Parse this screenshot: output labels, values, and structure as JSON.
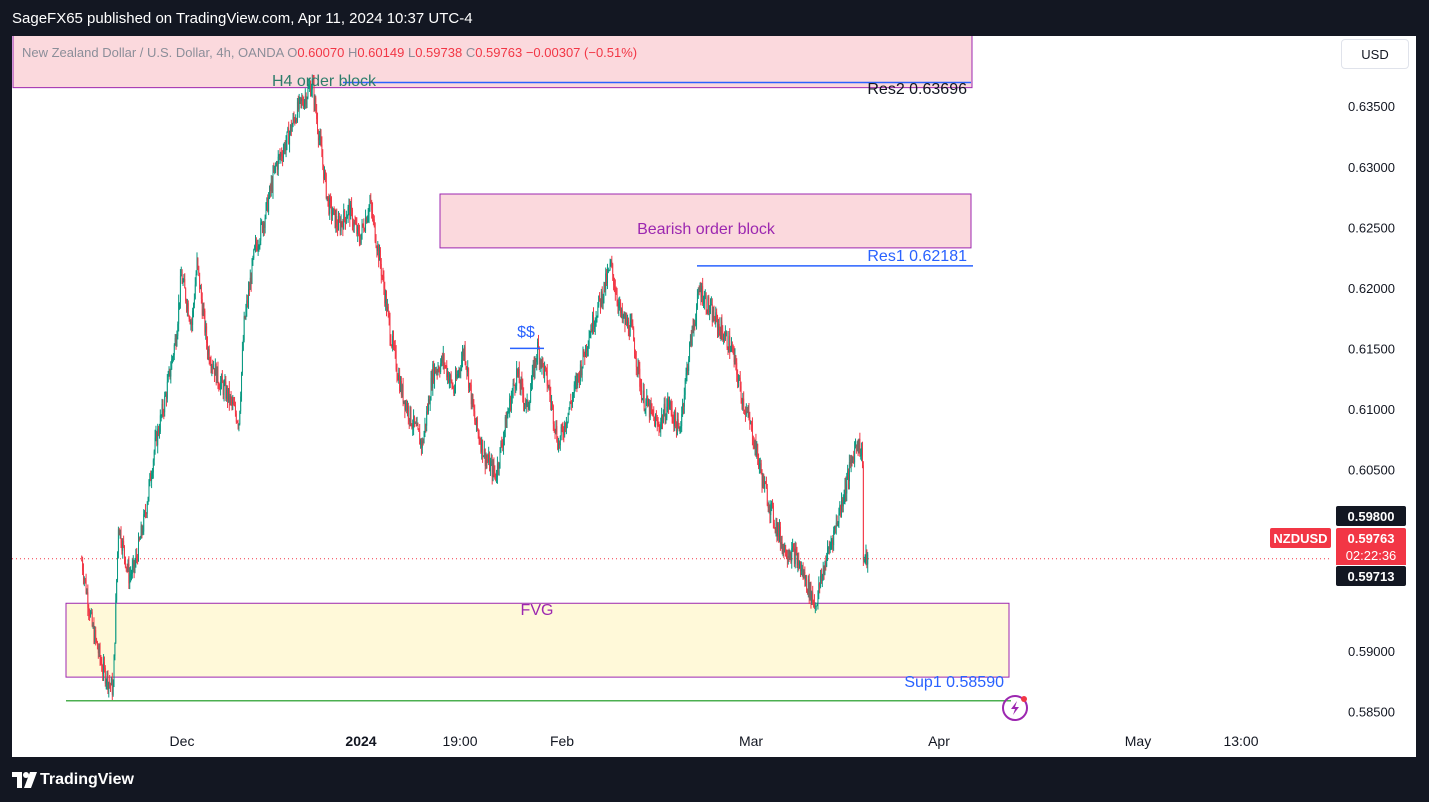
{
  "header": {
    "published": "SageFX65 published on TradingView.com, Apr 11, 2024 10:37 UTC-4"
  },
  "legend": {
    "symbol": "New Zealand Dollar / U.S. Dollar, 4h, OANDA",
    "open_label": "O",
    "open": "0.60070",
    "high_label": "H",
    "high": "0.60149",
    "low_label": "L",
    "low": "0.59738",
    "close_label": "C",
    "close": "0.59763",
    "change": "−0.00307 (−0.51%)"
  },
  "currency_button": "USD",
  "footer": {
    "brand": "TradingView"
  },
  "colors": {
    "up": "#089981",
    "down": "#f23645",
    "background": "#ffffff",
    "order_block_fill": "#fbd9dd",
    "fvg_fill": "#fff9d9",
    "zone_border": "#9c27b0",
    "resistance_line": "#2962ff",
    "support_line": "#4caf50"
  },
  "chart_data": {
    "type": "candlestick",
    "symbol": "NZDUSD",
    "timeframe": "4h",
    "y_axis": {
      "ticks": [
        "0.63500",
        "0.63000",
        "0.62500",
        "0.62000",
        "0.61500",
        "0.61000",
        "0.60500",
        "0.59000",
        "0.58500"
      ],
      "range": [
        0.5834,
        0.6408
      ]
    },
    "x_axis": {
      "ticks": [
        "Dec",
        "2024",
        "19:00",
        "Feb",
        "Mar",
        "Apr",
        "May",
        "13:00"
      ]
    },
    "price_path": [
      [
        "Nov 13",
        0.5975
      ],
      [
        "Nov 15",
        0.592
      ],
      [
        "Nov 17",
        0.5885
      ],
      [
        "Nov 19",
        0.5868
      ],
      [
        "Nov 20",
        0.6005
      ],
      [
        "Nov 22",
        0.5962
      ],
      [
        "Nov 23",
        0.5968
      ],
      [
        "Nov 25",
        0.601
      ],
      [
        "Nov 27",
        0.607
      ],
      [
        "Nov 29",
        0.611
      ],
      [
        "Dec 1",
        0.616
      ],
      [
        "Dec 2",
        0.621
      ],
      [
        "Dec 4",
        0.617
      ],
      [
        "Dec 5",
        0.622
      ],
      [
        "Dec 7",
        0.615
      ],
      [
        "Dec 9",
        0.6125
      ],
      [
        "Dec 11",
        0.611
      ],
      [
        "Dec 13",
        0.609
      ],
      [
        "Dec 14",
        0.617
      ],
      [
        "Dec 16",
        0.623
      ],
      [
        "Dec 18",
        0.626
      ],
      [
        "Dec 20",
        0.63
      ],
      [
        "Dec 22",
        0.632
      ],
      [
        "Dec 24",
        0.6345
      ],
      [
        "Dec 27",
        0.6369
      ],
      [
        "Dec 28",
        0.6335
      ],
      [
        "Dec 30",
        0.627
      ],
      [
        "Jan 1",
        0.625
      ],
      [
        "Jan 3",
        0.6265
      ],
      [
        "Jan 5",
        0.624
      ],
      [
        "Jan 7",
        0.627
      ],
      [
        "Jan 9",
        0.622
      ],
      [
        "Jan 11",
        0.616
      ],
      [
        "Jan 13",
        0.6115
      ],
      [
        "Jan 15",
        0.609
      ],
      [
        "Jan 17",
        0.607
      ],
      [
        "Jan 19",
        0.613
      ],
      [
        "Jan 21",
        0.614
      ],
      [
        "Jan 23",
        0.6115
      ],
      [
        "Jan 25",
        0.615
      ],
      [
        "Jan 27",
        0.609
      ],
      [
        "Jan 29",
        0.606
      ],
      [
        "Jan 31",
        0.6045
      ],
      [
        "Feb 2",
        0.609
      ],
      [
        "Feb 4",
        0.613
      ],
      [
        "Feb 6",
        0.61
      ],
      [
        "Feb 8",
        0.615
      ],
      [
        "Feb 10",
        0.612
      ],
      [
        "Feb 12",
        0.607
      ],
      [
        "Feb 14",
        0.61
      ],
      [
        "Feb 16",
        0.613
      ],
      [
        "Feb 18",
        0.6165
      ],
      [
        "Feb 20",
        0.619
      ],
      [
        "Feb 22",
        0.6218
      ],
      [
        "Feb 24",
        0.6175
      ],
      [
        "Feb 26",
        0.6165
      ],
      [
        "Feb 28",
        0.611
      ],
      [
        "Mar 2",
        0.6085
      ],
      [
        "Mar 4",
        0.6105
      ],
      [
        "Mar 6",
        0.608
      ],
      [
        "Mar 8",
        0.615
      ],
      [
        "Mar 10",
        0.62
      ],
      [
        "Mar 12",
        0.618
      ],
      [
        "Mar 14",
        0.6165
      ],
      [
        "Mar 16",
        0.615
      ],
      [
        "Mar 18",
        0.611
      ],
      [
        "Mar 20",
        0.608
      ],
      [
        "Mar 22",
        0.604
      ],
      [
        "Mar 24",
        0.601
      ],
      [
        "Mar 26",
        0.5985
      ],
      [
        "Mar 28",
        0.598
      ],
      [
        "Mar 30",
        0.596
      ],
      [
        "Apr 1",
        0.5938
      ],
      [
        "Apr 3",
        0.5975
      ],
      [
        "Apr 5",
        0.6005
      ],
      [
        "Apr 7",
        0.604
      ],
      [
        "Apr 9",
        0.6075
      ],
      [
        "Apr 10",
        0.606
      ],
      [
        "Apr 10",
        0.5975
      ],
      [
        "Apr 11",
        0.5976
      ]
    ],
    "annotations": {
      "h4_order_block": {
        "label": "H4 order block",
        "top": 0.641,
        "bottom": 0.6367
      },
      "res2": {
        "label": "Res2 0.63696",
        "value": 0.63696
      },
      "bearish_order_block": {
        "label": "Bearish order block",
        "top": 0.62775,
        "bottom": 0.6233
      },
      "res1": {
        "label": "Res1 0.62181",
        "value": 0.62181
      },
      "liquidity": {
        "label": "$$",
        "value": 0.615
      },
      "fvg": {
        "label": "FVG",
        "top": 0.59395,
        "bottom": 0.58785
      },
      "sup1": {
        "label": "Sup1 0.58590",
        "value": 0.5859
      }
    },
    "price_labels": {
      "upper": "0.59800",
      "symbol_tag": "NZDUSD",
      "current": "0.59763",
      "countdown": "02:22:36",
      "lower": "0.59713",
      "current_value": 0.59763
    }
  }
}
